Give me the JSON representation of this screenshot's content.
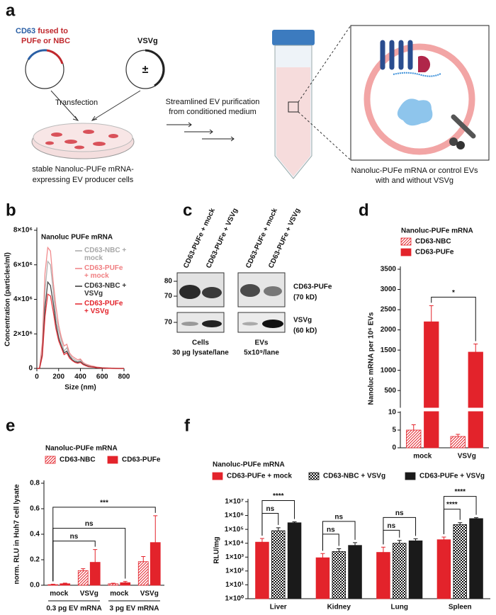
{
  "figure": {
    "a": {
      "label": "a",
      "cd63": "CD63",
      "fused": "fused to",
      "pufe_nbc": "PUFe or NBC",
      "vsvg": "VSVg",
      "plusminus": "±",
      "transfection": "Transfection",
      "cells_1": "stable Nanoluc-PUFe mRNA-",
      "cells_2": "expressing EV producer cells",
      "purification_1": "Streamlined EV purification",
      "purification_2": "from conditioned medium",
      "evs_1": "Nanoluc-PUFe mRNA or control EVs",
      "evs_2": "with and without VSVg"
    },
    "c": {
      "label": "c",
      "lanes": [
        "CD63-PUFe + mock",
        "CD63-PUFe + VSVg",
        "CD63-PUFe + mock",
        "CD63-PUFe + VSVg"
      ],
      "markers_top": [
        "80",
        "70"
      ],
      "marker_bottom": "70",
      "band_top": [
        "CD63-PUFe",
        "(70 kD)"
      ],
      "band_bottom": [
        "VSVg",
        "(60 kD)"
      ],
      "cells": [
        "Cells",
        "30 µg lysate/lane"
      ],
      "evs": [
        "EVs",
        "5x10⁹/lane"
      ]
    }
  },
  "chart_data": [
    {
      "panel": "b",
      "type": "line",
      "legend_title": "Nanoluc PUFe mRNA",
      "ylabel": "Concentration (particles/ml)",
      "xlabel": "Size (nm)",
      "x": [
        0,
        25,
        50,
        75,
        100,
        125,
        150,
        175,
        200,
        225,
        250,
        275,
        300,
        325,
        350,
        375,
        400,
        425,
        450,
        475,
        500,
        525,
        550,
        575,
        600,
        625,
        650,
        675,
        700,
        725,
        750,
        775,
        800
      ],
      "xlim": [
        0,
        800
      ],
      "xticks": [
        0,
        200,
        400,
        600,
        800
      ],
      "ylim": [
        0,
        8000000
      ],
      "yticks": [
        0,
        {
          "value": 2000000,
          "label": "2×10⁶"
        },
        {
          "value": 4000000,
          "label": "4×10⁶"
        },
        {
          "value": 6000000,
          "label": "6×10⁶"
        },
        {
          "value": 8000000,
          "label": "8×10⁶"
        }
      ],
      "series": [
        {
          "name": "CD63-NBC + mock",
          "color": "#a8a8a8",
          "values": [
            0,
            0,
            1000000,
            4500000,
            6200000,
            6000000,
            4500000,
            3000000,
            2200000,
            1600000,
            1000000,
            1200000,
            800000,
            600000,
            500000,
            400000,
            500000,
            300000,
            200000,
            150000,
            100000,
            100000,
            50000,
            50000,
            30000,
            30000,
            20000,
            20000,
            10000,
            10000,
            0,
            0,
            0
          ]
        },
        {
          "name": "CD63-PUFe + mock",
          "color": "#f07f82",
          "values": [
            0,
            0,
            1500000,
            5500000,
            7000000,
            6800000,
            5000000,
            3600000,
            2500000,
            1800000,
            1300000,
            1400000,
            900000,
            700000,
            600000,
            500000,
            550000,
            350000,
            250000,
            200000,
            150000,
            120000,
            80000,
            60000,
            40000,
            30000,
            20000,
            20000,
            10000,
            10000,
            0,
            0,
            0
          ]
        },
        {
          "name": "CD63-NBC + VSVg",
          "color": "#333333",
          "values": [
            0,
            0,
            800000,
            3500000,
            5000000,
            4800000,
            3800000,
            2600000,
            1800000,
            1300000,
            900000,
            1000000,
            700000,
            500000,
            400000,
            350000,
            400000,
            250000,
            180000,
            120000,
            90000,
            80000,
            40000,
            40000,
            30000,
            20000,
            20000,
            10000,
            10000,
            0,
            0,
            0,
            0
          ]
        },
        {
          "name": "CD63-PUFe + VSVg",
          "color": "#e3232b",
          "values": [
            0,
            0,
            700000,
            3000000,
            4300000,
            4200000,
            3300000,
            2300000,
            1600000,
            1200000,
            800000,
            900000,
            600000,
            450000,
            350000,
            300000,
            350000,
            220000,
            150000,
            100000,
            80000,
            70000,
            40000,
            30000,
            20000,
            20000,
            10000,
            10000,
            0,
            0,
            0,
            0,
            0
          ]
        }
      ]
    },
    {
      "panel": "d",
      "type": "bar",
      "legend_title": "Nanoluc-PUFe mRNA",
      "ylabel": "Nanoluc mRNA per 10⁶ EVs",
      "categories": [
        "mock",
        "VSVg"
      ],
      "series": [
        {
          "name": "CD63-NBC",
          "color": "#e3232b",
          "pattern": "hatch",
          "values": [
            5,
            3.2
          ],
          "errors": [
            1.5,
            0.6
          ]
        },
        {
          "name": "CD63-PUFe",
          "color": "#e3232b",
          "values": [
            2200,
            1450
          ],
          "errors": [
            400,
            200
          ]
        }
      ],
      "ylim": [
        0,
        3500
      ],
      "axis_break": [
        10,
        100
      ],
      "yticks": [
        0,
        5,
        10,
        500,
        1000,
        1500,
        2000,
        2500,
        3000,
        3500
      ],
      "significance": [
        {
          "label": "*",
          "from": [
            1,
            0
          ],
          "to": [
            1,
            1
          ]
        }
      ]
    },
    {
      "panel": "e",
      "type": "bar",
      "legend_title": "Nanoluc-PUFe mRNA",
      "ylabel": "norm. RLU in Huh7 cell lysate",
      "categories": [
        "mock",
        "VSVg",
        "mock",
        "VSVg"
      ],
      "category_groups": [
        "0.3 pg EV mRNA",
        "3 pg EV mRNA"
      ],
      "series": [
        {
          "name": "CD63-NBC",
          "color": "#e3232b",
          "pattern": "hatch",
          "values": [
            0.005,
            0.115,
            0.012,
            0.185
          ],
          "errors": [
            0.003,
            0.015,
            0.004,
            0.04
          ]
        },
        {
          "name": "CD63-PUFe",
          "color": "#e3232b",
          "values": [
            0.012,
            0.18,
            0.02,
            0.335
          ],
          "errors": [
            0.005,
            0.1,
            0.01,
            0.21
          ]
        }
      ],
      "ylim": [
        0,
        0.8
      ],
      "yticks": [
        {
          "value": 0,
          "label": "0.0"
        },
        0.2,
        0.4,
        0.6,
        0.8
      ],
      "significance": [
        {
          "label": "ns",
          "from": [
            0,
            0
          ],
          "to": [
            1,
            1
          ]
        },
        {
          "label": "ns",
          "from": [
            0,
            0
          ],
          "to": [
            1,
            2
          ]
        },
        {
          "label": "***",
          "from": [
            0,
            0
          ],
          "to": [
            1,
            3
          ]
        }
      ]
    },
    {
      "panel": "f",
      "type": "bar",
      "log_scale": true,
      "legend_title": "Nanoluc-PUFe mRNA",
      "ylabel": "RLU/mg",
      "categories": [
        "Liver",
        "Kidney",
        "Lung",
        "Spleen"
      ],
      "series": [
        {
          "name": "CD63-PUFe + mock",
          "color": "#e3232b",
          "values": [
            12000,
            900,
            2200,
            18000
          ],
          "errors": [
            10000,
            900,
            3000,
            10000
          ]
        },
        {
          "name": "CD63-NBC + VSVg",
          "color": "#111111",
          "pattern": "checker",
          "values": [
            80000,
            2500,
            10000,
            220000
          ],
          "errors": [
            50000,
            1500,
            6000,
            80000
          ]
        },
        {
          "name": "CD63-PUFe + VSVg",
          "color": "#1a1a1a",
          "values": [
            300000,
            7000,
            15000,
            600000
          ],
          "errors": [
            50000,
            4000,
            6000,
            100000
          ]
        }
      ],
      "ylim": [
        1,
        10000000
      ],
      "yticks": [
        {
          "value": 1,
          "label": "1×10⁰"
        },
        {
          "value": 10,
          "label": "1×10¹"
        },
        {
          "value": 100,
          "label": "1×10²"
        },
        {
          "value": 1000,
          "label": "1×10³"
        },
        {
          "value": 10000,
          "label": "1×10⁴"
        },
        {
          "value": 100000,
          "label": "1×10⁵"
        },
        {
          "value": 1000000,
          "label": "1×10⁶"
        },
        {
          "value": 10000000,
          "label": "1×10⁷"
        }
      ],
      "significance": [
        {
          "label": "ns",
          "from": [
            0,
            0
          ],
          "to": [
            1,
            0
          ]
        },
        {
          "label": "****",
          "from": [
            0,
            0
          ],
          "to": [
            2,
            0
          ]
        },
        {
          "label": "ns",
          "from": [
            0,
            1
          ],
          "to": [
            1,
            1
          ]
        },
        {
          "label": "ns",
          "from": [
            0,
            1
          ],
          "to": [
            2,
            1
          ]
        },
        {
          "label": "ns",
          "from": [
            0,
            2
          ],
          "to": [
            1,
            2
          ]
        },
        {
          "label": "ns",
          "from": [
            0,
            2
          ],
          "to": [
            2,
            2
          ]
        },
        {
          "label": "****",
          "from": [
            0,
            3
          ],
          "to": [
            1,
            3
          ]
        },
        {
          "label": "****",
          "from": [
            0,
            3
          ],
          "to": [
            2,
            3
          ]
        }
      ]
    }
  ]
}
